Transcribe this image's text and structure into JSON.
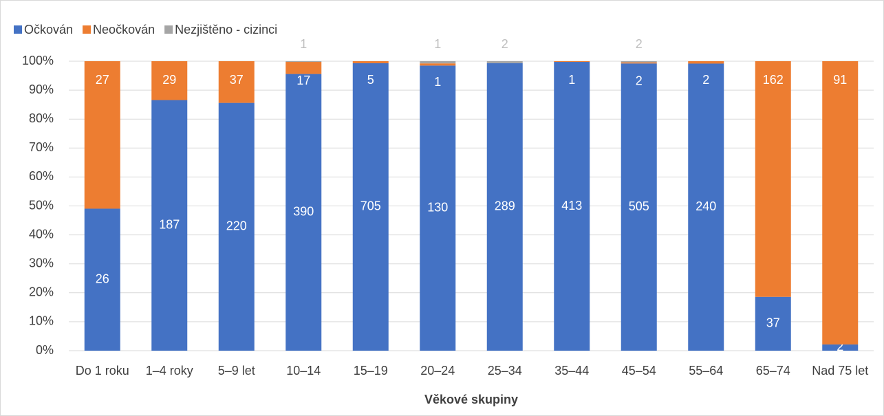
{
  "chart_data": {
    "type": "bar",
    "stacking": "percent",
    "x_label": "Věkové skupiny",
    "categories": [
      "Do 1 roku",
      "1–4 roky",
      "5–9 let",
      "10–14",
      "15–19",
      "20–24",
      "25–34",
      "35–44",
      "45–54",
      "55–64",
      "65–74",
      "Nad 75 let"
    ],
    "series": [
      {
        "name": "Očkován",
        "color": "#4472c4",
        "values": [
          26,
          187,
          220,
          390,
          705,
          130,
          289,
          413,
          505,
          240,
          37,
          2
        ]
      },
      {
        "name": "Neočkován",
        "color": "#ed7d31",
        "values": [
          27,
          29,
          37,
          17,
          5,
          1,
          null,
          1,
          2,
          2,
          162,
          91
        ]
      },
      {
        "name": "Nezjištěno - cizinci",
        "color": "#a5a5a5",
        "values": [
          null,
          null,
          null,
          1,
          null,
          1,
          2,
          null,
          2,
          null,
          null,
          null
        ]
      }
    ],
    "ylim": [
      0,
      100
    ],
    "yticks": [
      {
        "value": 0,
        "label": "0%"
      },
      {
        "value": 10,
        "label": "10%"
      },
      {
        "value": 20,
        "label": "20%"
      },
      {
        "value": 30,
        "label": "30%"
      },
      {
        "value": 40,
        "label": "40%"
      },
      {
        "value": 50,
        "label": "50%"
      },
      {
        "value": 60,
        "label": "60%"
      },
      {
        "value": 70,
        "label": "70%"
      },
      {
        "value": 80,
        "label": "80%"
      },
      {
        "value": 90,
        "label": "90%"
      },
      {
        "value": 100,
        "label": "100%"
      }
    ],
    "grid": true,
    "legend": "top-left"
  }
}
